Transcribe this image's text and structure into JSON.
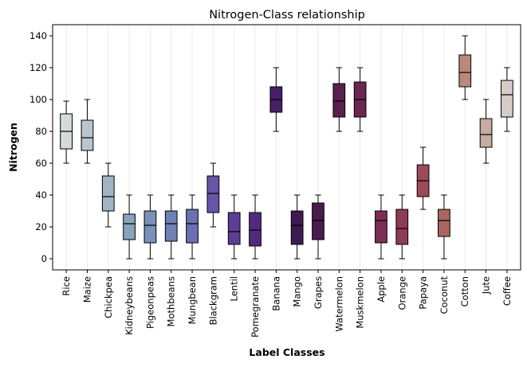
{
  "chart_data": {
    "type": "box",
    "title": "Nitrogen-Class relationship",
    "xlabel": "Label Classes",
    "ylabel": "Nitrogen",
    "ylim": [
      -7,
      147
    ],
    "yticks": [
      0,
      20,
      40,
      60,
      80,
      100,
      120,
      140
    ],
    "grid": "vertical",
    "categories": [
      "Rice",
      "Maize",
      "Chickpea",
      "Kidneybeans",
      "Pigeonpeas",
      "Mothbeans",
      "Mungbean",
      "Blackgram",
      "Lentil",
      "Pomegranate",
      "Banana",
      "Mango",
      "Grapes",
      "Watermelon",
      "Muskmelon",
      "Apple",
      "Orange",
      "Papaya",
      "Coconut",
      "Cotton",
      "Jute",
      "Coffee"
    ],
    "boxes": [
      {
        "min": 60,
        "q1": 69,
        "median": 80,
        "q3": 91,
        "max": 99,
        "color": "#d5dadd"
      },
      {
        "min": 60,
        "q1": 68,
        "median": 76,
        "q3": 87,
        "max": 100,
        "color": "#b9c6cd"
      },
      {
        "min": 20,
        "q1": 30,
        "median": 39,
        "q3": 52,
        "max": 60,
        "color": "#9fb5c4"
      },
      {
        "min": 0,
        "q1": 12,
        "median": 22,
        "q3": 28,
        "max": 40,
        "color": "#89a3bd"
      },
      {
        "min": 0,
        "q1": 10,
        "median": 21,
        "q3": 30,
        "max": 40,
        "color": "#7a92b9"
      },
      {
        "min": 0,
        "q1": 11,
        "median": 22,
        "q3": 30,
        "max": 40,
        "color": "#6d81b5"
      },
      {
        "min": 0,
        "q1": 10,
        "median": 22,
        "q3": 31,
        "max": 40,
        "color": "#6a70b1"
      },
      {
        "min": 20,
        "q1": 29,
        "median": 41,
        "q3": 52,
        "max": 60,
        "color": "#6755a7"
      },
      {
        "min": 0,
        "q1": 9,
        "median": 17,
        "q3": 29,
        "max": 40,
        "color": "#5c3e95"
      },
      {
        "min": 0,
        "q1": 8,
        "median": 18,
        "q3": 29,
        "max": 40,
        "color": "#512c7e"
      },
      {
        "min": 80,
        "q1": 92,
        "median": 100,
        "q3": 108,
        "max": 120,
        "color": "#472066"
      },
      {
        "min": 0,
        "q1": 9,
        "median": 21,
        "q3": 30,
        "max": 40,
        "color": "#3e1a52"
      },
      {
        "min": 0,
        "q1": 12,
        "median": 24,
        "q3": 35,
        "max": 40,
        "color": "#481c4c"
      },
      {
        "min": 80,
        "q1": 89,
        "median": 99,
        "q3": 110,
        "max": 120,
        "color": "#5a1f4c"
      },
      {
        "min": 80,
        "q1": 89,
        "median": 100,
        "q3": 111,
        "max": 120,
        "color": "#6c2650"
      },
      {
        "min": 0,
        "q1": 10,
        "median": 24,
        "q3": 30,
        "max": 40,
        "color": "#7d2e55"
      },
      {
        "min": 0,
        "q1": 9,
        "median": 19,
        "q3": 31,
        "max": 40,
        "color": "#8e3a58"
      },
      {
        "min": 31,
        "q1": 39,
        "median": 49,
        "q3": 59,
        "max": 70,
        "color": "#9c4a5a"
      },
      {
        "min": 0,
        "q1": 14,
        "median": 24,
        "q3": 31,
        "max": 40,
        "color": "#aa6760"
      },
      {
        "min": 100,
        "q1": 108,
        "median": 117,
        "q3": 128,
        "max": 140,
        "color": "#b98a7a"
      },
      {
        "min": 60,
        "q1": 70,
        "median": 78,
        "q3": 88,
        "max": 100,
        "color": "#c6aca2"
      },
      {
        "min": 80,
        "q1": 89,
        "median": 103,
        "q3": 112,
        "max": 120,
        "color": "#d6ccc7"
      }
    ]
  }
}
